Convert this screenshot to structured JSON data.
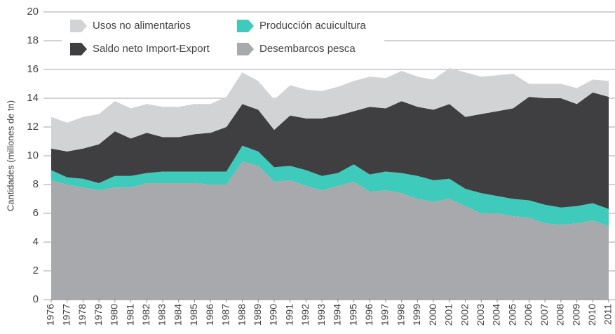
{
  "chart_data": {
    "type": "stacked_area",
    "y_label": "Cantidades (millones de tn)",
    "categories": [
      "1976",
      "1977",
      "1978",
      "1979",
      "1980",
      "1981",
      "1982",
      "1983",
      "1984",
      "1985",
      "1986",
      "1987",
      "1988",
      "1989",
      "1990",
      "1991",
      "1992",
      "1993",
      "1994",
      "1995",
      "1996",
      "1997",
      "1998",
      "1999",
      "2000",
      "2001",
      "2002",
      "2003",
      "2004",
      "2005",
      "2006",
      "2007",
      "2008",
      "2009",
      "2010",
      "2011"
    ],
    "series": [
      {
        "name": "Desembarcos pesca",
        "color": "#a7a9ac",
        "values": [
          8.3,
          8.0,
          7.8,
          7.6,
          7.8,
          7.8,
          8.1,
          8.1,
          8.1,
          8.1,
          8.0,
          8.0,
          9.6,
          9.3,
          8.2,
          8.3,
          7.9,
          7.6,
          7.9,
          8.2,
          7.5,
          7.6,
          7.4,
          7.0,
          6.8,
          7.0,
          6.5,
          6.0,
          6.0,
          5.8,
          5.7,
          5.3,
          5.2,
          5.3,
          5.5,
          5.1
        ]
      },
      {
        "name": "Producción acuicultura",
        "color": "#3fcbbb",
        "values": [
          0.7,
          0.5,
          0.6,
          0.5,
          0.8,
          0.8,
          0.7,
          0.8,
          0.8,
          0.8,
          0.9,
          0.9,
          1.1,
          1.0,
          1.0,
          1.0,
          1.1,
          1.0,
          0.9,
          1.2,
          1.2,
          1.3,
          1.4,
          1.6,
          1.5,
          1.4,
          1.2,
          1.4,
          1.2,
          1.2,
          1.2,
          1.3,
          1.2,
          1.2,
          1.2,
          1.2
        ]
      },
      {
        "name": "Saldo neto Import-Export",
        "color": "#3f3f41",
        "values": [
          1.5,
          1.8,
          2.1,
          2.7,
          3.1,
          2.6,
          2.8,
          2.4,
          2.4,
          2.6,
          2.7,
          3.1,
          2.9,
          2.9,
          2.6,
          3.5,
          3.6,
          4.0,
          4.0,
          3.7,
          4.7,
          4.4,
          5.0,
          4.8,
          4.9,
          5.2,
          5.0,
          5.5,
          5.9,
          6.3,
          7.2,
          7.4,
          7.6,
          7.1,
          7.7,
          7.8
        ]
      },
      {
        "name": "Usos no alimentarios",
        "color": "#d1d3d4",
        "values": [
          2.2,
          2.0,
          2.2,
          2.1,
          2.1,
          2.1,
          2.0,
          2.1,
          2.1,
          2.1,
          2.0,
          2.1,
          2.2,
          2.0,
          2.1,
          2.1,
          2.0,
          1.9,
          2.0,
          2.1,
          2.1,
          2.1,
          2.1,
          2.1,
          2.1,
          2.5,
          3.1,
          2.6,
          2.5,
          2.4,
          0.9,
          1.0,
          1.0,
          1.1,
          0.9,
          1.1
        ]
      }
    ],
    "ylim": [
      0,
      20
    ],
    "yticks": [
      0,
      2,
      4,
      6,
      8,
      10,
      12,
      14,
      16,
      18,
      20
    ],
    "grid": true,
    "legend": "top-left"
  }
}
